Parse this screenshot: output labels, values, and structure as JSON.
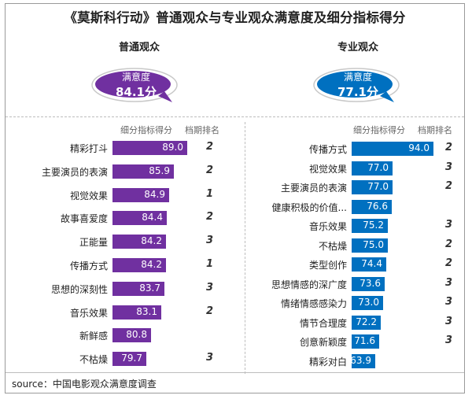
{
  "title": "《莫斯科行动》普通观众与专业观众满意度及细分指标得分",
  "source": "source：中国电影观众满意度调查",
  "colors": {
    "general": "#7030a0",
    "professional": "#0070c0"
  },
  "chart_data": [
    {
      "type": "bar",
      "title": "普通观众",
      "satisfaction_label": "满意度",
      "satisfaction_score": "84.1分",
      "col_score": "细分指标得分",
      "col_rank": "档期排名",
      "categories": [
        "精彩打斗",
        "主要演员的表演",
        "视觉效果",
        "故事喜爱度",
        "正能量",
        "传播方式",
        "思想的深刻性",
        "音乐效果",
        "新鲜感",
        "不枯燥"
      ],
      "values": [
        89.0,
        85.9,
        84.9,
        84.4,
        84.2,
        84.2,
        83.7,
        83.1,
        80.8,
        79.7
      ],
      "ranks": [
        "2",
        "2",
        "1",
        "2",
        "3",
        "1",
        "3",
        "2",
        "",
        "3"
      ],
      "xlim": [
        72,
        92
      ]
    },
    {
      "type": "bar",
      "title": "专业观众",
      "satisfaction_label": "满意度",
      "satisfaction_score": "77.1分",
      "col_score": "细分指标得分",
      "col_rank": "档期排名",
      "categories": [
        "传播方式",
        "视觉效果",
        "主要演员的表演",
        "健康积极的价值...",
        "音乐效果",
        "不枯燥",
        "类型创作",
        "思想情感的深广度",
        "情绪情感感染力",
        "情节合理度",
        "创意新颖度",
        "精彩对白"
      ],
      "values": [
        94.0,
        77.0,
        77.0,
        76.6,
        75.2,
        75.0,
        74.4,
        73.6,
        73.0,
        72.2,
        71.6,
        63.9
      ],
      "ranks": [
        "2",
        "3",
        "2",
        "",
        "3",
        "2",
        "2",
        "3",
        "3",
        "3",
        "3",
        ""
      ],
      "xlim": [
        60,
        96
      ]
    }
  ]
}
